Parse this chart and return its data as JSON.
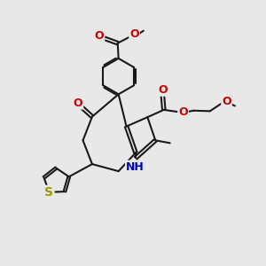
{
  "bg_color": "#e8e8e8",
  "bond_color": "#1a1a1a",
  "bond_lw": 1.5,
  "dbo": 0.06,
  "atom_colors": {
    "O": "#cc0000",
    "N": "#0000bb",
    "S": "#999900",
    "C": "#1a1a1a"
  },
  "fs": 9.0
}
